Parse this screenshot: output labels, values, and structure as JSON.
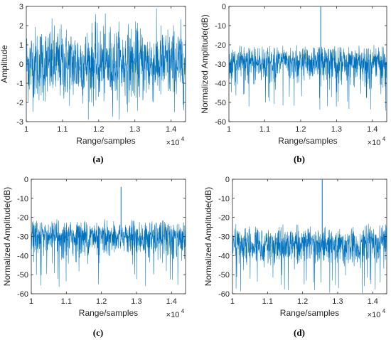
{
  "chart_data": [
    {
      "type": "line",
      "caption": "(a)",
      "xlabel": "Range/samples",
      "ylabel": "Amplitude",
      "xlim": [
        10000,
        14400
      ],
      "ylim": [
        -3,
        3
      ],
      "xticks": [
        "1",
        "1.1",
        "1.2",
        "1.3",
        "1.4"
      ],
      "yticks": [
        "-3",
        "-2",
        "-1",
        "0",
        "1",
        "2",
        "3"
      ],
      "x_multiplier": "×10",
      "x_multiplier_exp": "4",
      "series_color": "#0072BD",
      "signal": {
        "kind": "noise",
        "center": 0,
        "spread": 0.95,
        "peak_x": null,
        "peak_y": null
      }
    },
    {
      "type": "line",
      "caption": "(b)",
      "xlabel": "Range/samples",
      "ylabel": "Normalized Amplitude(dB)",
      "xlim": [
        10000,
        14400
      ],
      "ylim": [
        -60,
        0
      ],
      "xticks": [
        "1",
        "1.1",
        "1.2",
        "1.3",
        "1.4"
      ],
      "yticks": [
        "-60",
        "-50",
        "-40",
        "-30",
        "-20",
        "-10",
        "0"
      ],
      "x_multiplier": "×10",
      "x_multiplier_exp": "4",
      "series_color": "#0072BD",
      "signal": {
        "kind": "db",
        "floor_top": -22,
        "floor_mid": -29,
        "floor_bottom": -45,
        "peak_x": 12560,
        "peak_y": 0
      }
    },
    {
      "type": "line",
      "caption": "(c)",
      "xlabel": "Range/samples",
      "ylabel": "Normalized Amplitude(dB)",
      "xlim": [
        10000,
        14400
      ],
      "ylim": [
        -60,
        0
      ],
      "xticks": [
        "1",
        "1.1",
        "1.2",
        "1.3",
        "1.4"
      ],
      "yticks": [
        "-60",
        "-50",
        "-40",
        "-30",
        "-20",
        "-10",
        "0"
      ],
      "x_multiplier": "×10",
      "x_multiplier_exp": "4",
      "series_color": "#0072BD",
      "signal": {
        "kind": "db",
        "floor_top": -23,
        "floor_mid": -30,
        "floor_bottom": -47,
        "peak_x": 12560,
        "peak_y": -4
      }
    },
    {
      "type": "line",
      "caption": "(d)",
      "xlabel": "Range/samples",
      "ylabel": "Normalized Amplitude(dB)",
      "xlim": [
        10000,
        14400
      ],
      "ylim": [
        -60,
        0
      ],
      "xticks": [
        "1",
        "1.1",
        "1.2",
        "1.3",
        "1.4"
      ],
      "yticks": [
        "-60",
        "-50",
        "-40",
        "-30",
        "-20",
        "-10",
        "0"
      ],
      "x_multiplier": "×10",
      "x_multiplier_exp": "4",
      "series_color": "#0072BD",
      "signal": {
        "kind": "db",
        "floor_top": -25,
        "floor_mid": -34,
        "floor_bottom": -50,
        "peak_x": 12560,
        "peak_y": 0
      }
    }
  ]
}
